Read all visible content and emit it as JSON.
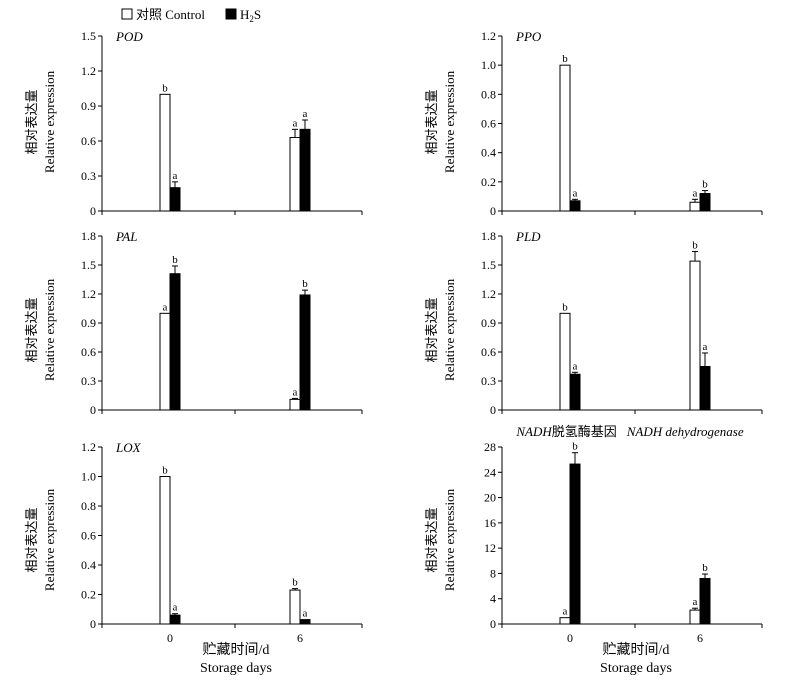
{
  "colors": {
    "control": "#ffffff",
    "h2s": "#000000",
    "axis": "#000000"
  },
  "legend": {
    "control_label": "对照 Control",
    "h2s_label_main": "H",
    "h2s_label_sub": "2",
    "h2s_label_tail": "S"
  },
  "x_axis": {
    "ticks": [
      "0",
      "6"
    ],
    "label_cn": "贮藏时间/d",
    "label_en": "Storage days"
  },
  "ylabel": {
    "cn": "相对表达量",
    "en": "Relative expression"
  },
  "chart_data": [
    {
      "type": "bar",
      "title": "POD",
      "title_extra": "",
      "categories": [
        "0",
        "6"
      ],
      "ylim": [
        0,
        1.5
      ],
      "yticks": [
        "0",
        "0.3",
        "0.6",
        "0.9",
        "1.2",
        "1.5"
      ],
      "series": [
        {
          "name": "对照 Control",
          "values": [
            1.0,
            0.63
          ],
          "errors": [
            0.0,
            0.07
          ],
          "letters": [
            "b",
            "a"
          ]
        },
        {
          "name": "H2S",
          "values": [
            0.2,
            0.7
          ],
          "errors": [
            0.05,
            0.08
          ],
          "letters": [
            "a",
            "a"
          ]
        }
      ]
    },
    {
      "type": "bar",
      "title": "PPO",
      "title_extra": "",
      "categories": [
        "0",
        "6"
      ],
      "ylim": [
        0,
        1.2
      ],
      "yticks": [
        "0",
        "0.2",
        "0.4",
        "0.6",
        "0.8",
        "1.0",
        "1.2"
      ],
      "series": [
        {
          "name": "对照 Control",
          "values": [
            1.0,
            0.06
          ],
          "errors": [
            0.0,
            0.02
          ],
          "letters": [
            "b",
            "a"
          ]
        },
        {
          "name": "H2S",
          "values": [
            0.07,
            0.12
          ],
          "errors": [
            0.01,
            0.02
          ],
          "letters": [
            "a",
            "b"
          ]
        }
      ]
    },
    {
      "type": "bar",
      "title": "PAL",
      "title_extra": "",
      "categories": [
        "0",
        "6"
      ],
      "ylim": [
        0,
        1.8
      ],
      "yticks": [
        "0",
        "0.3",
        "0.6",
        "0.9",
        "1.2",
        "1.5",
        "1.8"
      ],
      "series": [
        {
          "name": "对照 Control",
          "values": [
            1.0,
            0.11
          ],
          "errors": [
            0.0,
            0.01
          ],
          "letters": [
            "a",
            "a"
          ]
        },
        {
          "name": "H2S",
          "values": [
            1.41,
            1.19
          ],
          "errors": [
            0.08,
            0.05
          ],
          "letters": [
            "b",
            "b"
          ]
        }
      ]
    },
    {
      "type": "bar",
      "title": "PLD",
      "title_extra": "",
      "categories": [
        "0",
        "6"
      ],
      "ylim": [
        0,
        1.8
      ],
      "yticks": [
        "0",
        "0.3",
        "0.6",
        "0.9",
        "1.2",
        "1.5",
        "1.8"
      ],
      "series": [
        {
          "name": "对照 Control",
          "values": [
            1.0,
            1.54
          ],
          "errors": [
            0.0,
            0.1
          ],
          "letters": [
            "b",
            "b"
          ]
        },
        {
          "name": "H2S",
          "values": [
            0.37,
            0.45
          ],
          "errors": [
            0.02,
            0.14
          ],
          "letters": [
            "a",
            "a"
          ]
        }
      ]
    },
    {
      "type": "bar",
      "title": "LOX",
      "title_extra": "",
      "categories": [
        "0",
        "6"
      ],
      "ylim": [
        0,
        1.2
      ],
      "yticks": [
        "0",
        "0.2",
        "0.4",
        "0.6",
        "0.8",
        "1.0",
        "1.2"
      ],
      "series": [
        {
          "name": "对照 Control",
          "values": [
            1.0,
            0.23
          ],
          "errors": [
            0.0,
            0.01
          ],
          "letters": [
            "b",
            "b"
          ]
        },
        {
          "name": "H2S",
          "values": [
            0.06,
            0.03
          ],
          "errors": [
            0.01,
            0.0
          ],
          "letters": [
            "a",
            "a"
          ]
        }
      ]
    },
    {
      "type": "bar",
      "title": "NADH",
      "title_extra": "脱氢酶基因",
      "title_en": "NADH dehydrogenase",
      "categories": [
        "0",
        "6"
      ],
      "ylim": [
        0,
        28
      ],
      "yticks": [
        "0",
        "4",
        "8",
        "12",
        "16",
        "20",
        "24",
        "28"
      ],
      "series": [
        {
          "name": "对照 Control",
          "values": [
            1.0,
            2.2
          ],
          "errors": [
            0.0,
            0.3
          ],
          "letters": [
            "a",
            "a"
          ]
        },
        {
          "name": "H2S",
          "values": [
            25.3,
            7.2
          ],
          "errors": [
            1.8,
            0.7
          ],
          "letters": [
            "b",
            "b"
          ]
        }
      ]
    }
  ]
}
